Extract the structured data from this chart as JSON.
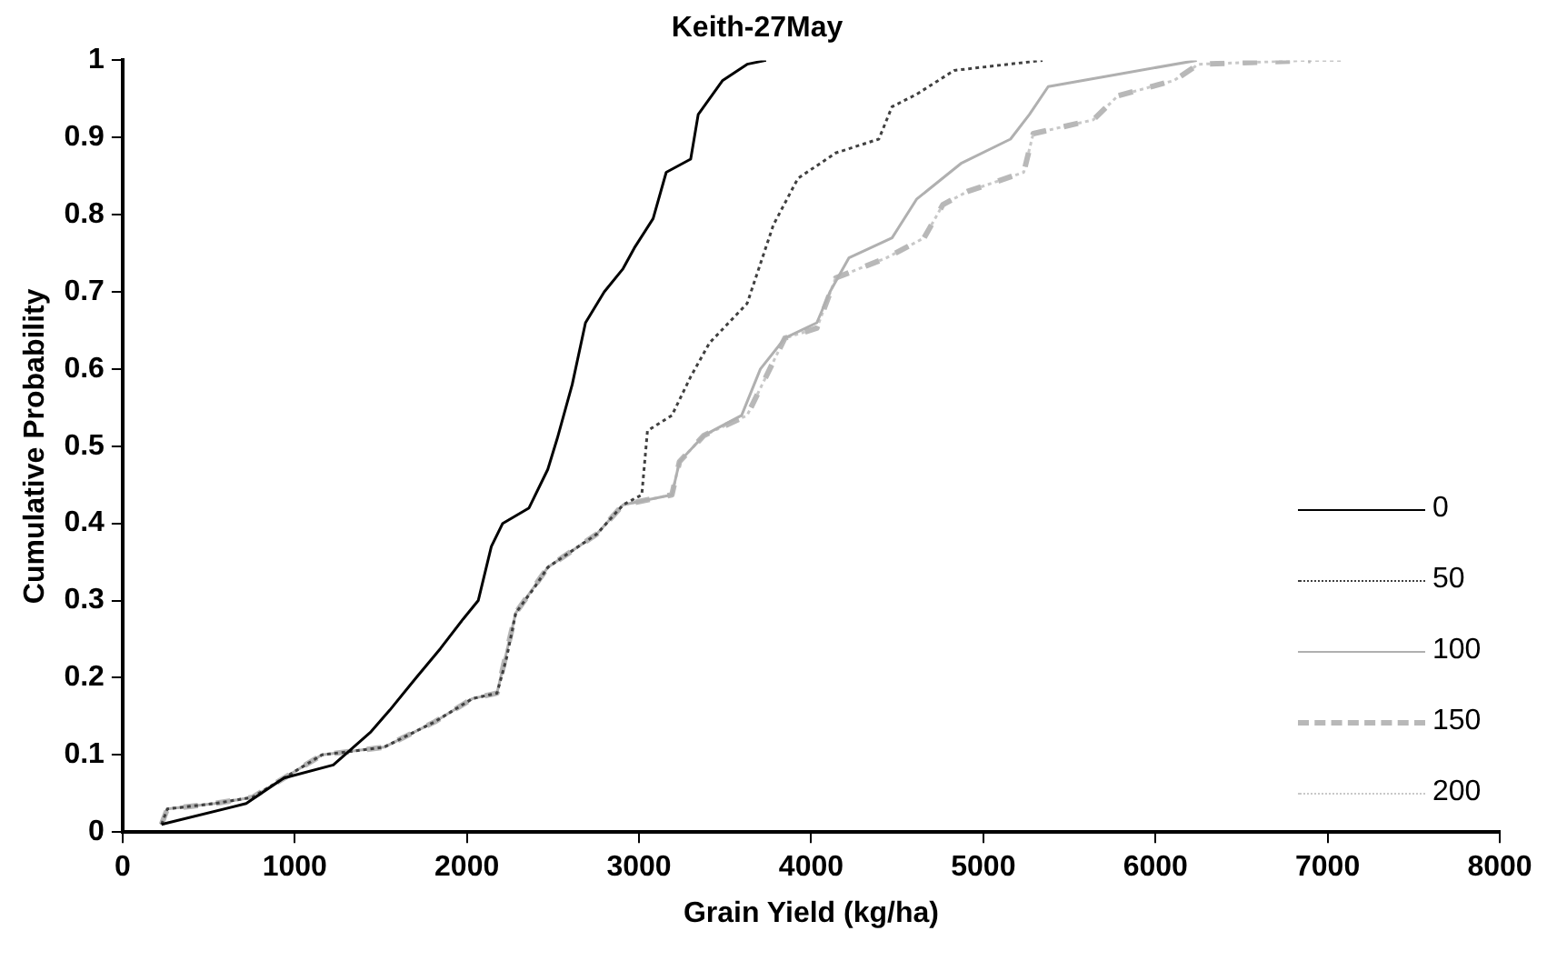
{
  "chart_data": {
    "type": "line",
    "title": "Keith-27May",
    "xlabel": "Grain Yield (kg/ha)",
    "ylabel": "Cumulative Probability",
    "xlim": [
      0,
      8000
    ],
    "xticks": [
      0,
      1000,
      2000,
      3000,
      4000,
      5000,
      6000,
      7000,
      8000
    ],
    "ylim": [
      0,
      1
    ],
    "yticks": [
      0,
      0.1,
      0.2,
      0.3,
      0.4,
      0.5,
      0.6,
      0.7,
      0.8,
      0.9,
      1
    ],
    "grid": false,
    "legend": "bottom right",
    "marker": "none",
    "series": [
      {
        "name": "0",
        "color": "#000000",
        "line_style": "solid",
        "x": [
          226,
          718,
          937,
          1224,
          1443,
          1552,
          1705,
          1847,
          1978,
          2066,
          2142,
          2208,
          2361,
          2470,
          2525,
          2612,
          2689,
          2798,
          2907,
          2973,
          3082,
          3158,
          3300,
          3344,
          3486,
          3628,
          3738
        ],
        "values": [
          0.01,
          0.037,
          0.07,
          0.087,
          0.13,
          0.158,
          0.2,
          0.238,
          0.276,
          0.3,
          0.37,
          0.4,
          0.42,
          0.47,
          0.51,
          0.58,
          0.66,
          0.7,
          0.73,
          0.757,
          0.795,
          0.855,
          0.872,
          0.93,
          0.974,
          0.995,
          1.0
        ]
      },
      {
        "name": "50",
        "color": "#404040",
        "line_style": "dotted",
        "x": [
          226,
          260,
          535,
          754,
          1158,
          1519,
          1814,
          2033,
          2175,
          2230,
          2284,
          2393,
          2470,
          2754,
          2907,
          3016,
          3049,
          3191,
          3300,
          3410,
          3628,
          3781,
          3923,
          4142,
          4393,
          4470,
          4612,
          4831,
          5344
        ],
        "values": [
          0.01,
          0.03,
          0.037,
          0.045,
          0.1,
          0.11,
          0.143,
          0.173,
          0.18,
          0.225,
          0.284,
          0.317,
          0.343,
          0.386,
          0.424,
          0.437,
          0.52,
          0.54,
          0.59,
          0.634,
          0.685,
          0.787,
          0.847,
          0.88,
          0.898,
          0.94,
          0.956,
          0.987,
          1.0
        ]
      },
      {
        "name": "100",
        "color": "#b0b0b0",
        "line_style": "solid",
        "x": [
          226,
          260,
          535,
          754,
          1158,
          1519,
          1814,
          2033,
          2175,
          2284,
          2470,
          2754,
          2907,
          3191,
          3235,
          3377,
          3596,
          3705,
          3847,
          4033,
          4109,
          4219,
          4470,
          4612,
          4874,
          5158,
          5268,
          5377,
          5781,
          6240
        ],
        "values": [
          0.01,
          0.03,
          0.037,
          0.045,
          0.1,
          0.11,
          0.143,
          0.173,
          0.18,
          0.284,
          0.343,
          0.386,
          0.424,
          0.437,
          0.48,
          0.514,
          0.54,
          0.6,
          0.64,
          0.66,
          0.7,
          0.744,
          0.77,
          0.82,
          0.867,
          0.898,
          0.93,
          0.966,
          0.982,
          1.0
        ]
      },
      {
        "name": "150",
        "color": "#b8b8b8",
        "line_style": "dashed",
        "x": [
          226,
          260,
          535,
          754,
          1158,
          1519,
          1814,
          2033,
          2175,
          2284,
          2470,
          2754,
          2907,
          3191,
          3235,
          3377,
          3628,
          3847,
          4033,
          4142,
          4437,
          4656,
          4765,
          4907,
          5235,
          5290,
          5639,
          5781,
          6109,
          6251,
          6900
        ],
        "values": [
          0.01,
          0.03,
          0.037,
          0.045,
          0.1,
          0.11,
          0.143,
          0.173,
          0.18,
          0.284,
          0.343,
          0.386,
          0.424,
          0.437,
          0.48,
          0.514,
          0.54,
          0.64,
          0.653,
          0.718,
          0.744,
          0.77,
          0.813,
          0.83,
          0.855,
          0.905,
          0.923,
          0.954,
          0.974,
          0.995,
          1.0
        ]
      },
      {
        "name": "200",
        "color": "#c8c8c8",
        "line_style": "dotted",
        "x": [
          226,
          260,
          535,
          754,
          1158,
          1519,
          1814,
          2033,
          2175,
          2284,
          2470,
          2754,
          2907,
          3191,
          3235,
          3377,
          3628,
          3847,
          4033,
          4142,
          4437,
          4656,
          4765,
          4907,
          5235,
          5290,
          5639,
          5781,
          6109,
          6251,
          6874,
          7093
        ],
        "values": [
          0.01,
          0.03,
          0.037,
          0.045,
          0.1,
          0.11,
          0.143,
          0.173,
          0.18,
          0.284,
          0.343,
          0.386,
          0.424,
          0.437,
          0.48,
          0.514,
          0.54,
          0.64,
          0.653,
          0.718,
          0.744,
          0.77,
          0.813,
          0.83,
          0.855,
          0.905,
          0.923,
          0.954,
          0.974,
          0.995,
          1.0,
          1.0
        ]
      }
    ]
  }
}
